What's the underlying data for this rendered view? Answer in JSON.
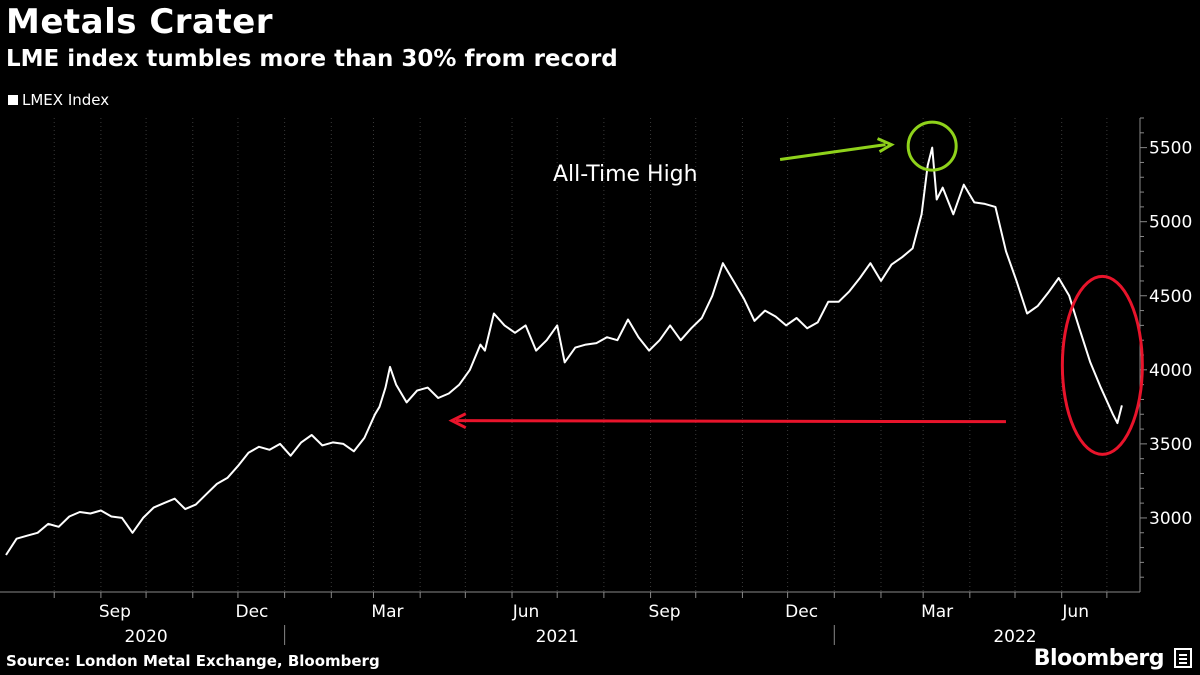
{
  "header": {
    "title": "Metals Crater",
    "subtitle": "LME index tumbles more than 30% from record"
  },
  "legend": {
    "label": "LMEX Index",
    "color": "#ffffff"
  },
  "footer": {
    "source": "Source: London Metal Exchange, Bloomberg",
    "brand": "Bloomberg"
  },
  "colors": {
    "background": "#000000",
    "line": "#ffffff",
    "grid": "#3a3a3a",
    "annotation_green": "#8fd21b",
    "annotation_red": "#e8142b"
  },
  "annotations": {
    "ath_label": "All-Time High"
  },
  "chart_data": {
    "type": "line",
    "series": [
      {
        "name": "LMEX Index",
        "points": [
          [
            "2020-06-30",
            2750
          ],
          [
            "2020-07-07",
            2860
          ],
          [
            "2020-07-14",
            2880
          ],
          [
            "2020-07-21",
            2900
          ],
          [
            "2020-07-28",
            2960
          ],
          [
            "2020-08-04",
            2940
          ],
          [
            "2020-08-11",
            3010
          ],
          [
            "2020-08-18",
            3040
          ],
          [
            "2020-08-25",
            3030
          ],
          [
            "2020-09-01",
            3050
          ],
          [
            "2020-09-08",
            3010
          ],
          [
            "2020-09-15",
            3000
          ],
          [
            "2020-09-22",
            2900
          ],
          [
            "2020-09-29",
            3000
          ],
          [
            "2020-10-06",
            3070
          ],
          [
            "2020-10-13",
            3100
          ],
          [
            "2020-10-20",
            3130
          ],
          [
            "2020-10-27",
            3060
          ],
          [
            "2020-11-03",
            3090
          ],
          [
            "2020-11-10",
            3160
          ],
          [
            "2020-11-17",
            3230
          ],
          [
            "2020-11-24",
            3270
          ],
          [
            "2020-12-01",
            3350
          ],
          [
            "2020-12-08",
            3440
          ],
          [
            "2020-12-15",
            3480
          ],
          [
            "2020-12-22",
            3460
          ],
          [
            "2020-12-29",
            3500
          ],
          [
            "2021-01-05",
            3420
          ],
          [
            "2021-01-12",
            3510
          ],
          [
            "2021-01-19",
            3560
          ],
          [
            "2021-01-26",
            3490
          ],
          [
            "2021-02-02",
            3510
          ],
          [
            "2021-02-09",
            3500
          ],
          [
            "2021-02-16",
            3450
          ],
          [
            "2021-02-23",
            3540
          ],
          [
            "2021-03-02",
            3700
          ],
          [
            "2021-03-05",
            3750
          ],
          [
            "2021-03-09",
            3880
          ],
          [
            "2021-03-12",
            4020
          ],
          [
            "2021-03-16",
            3900
          ],
          [
            "2021-03-23",
            3780
          ],
          [
            "2021-03-30",
            3860
          ],
          [
            "2021-04-06",
            3880
          ],
          [
            "2021-04-13",
            3810
          ],
          [
            "2021-04-20",
            3840
          ],
          [
            "2021-04-27",
            3900
          ],
          [
            "2021-05-04",
            4000
          ],
          [
            "2021-05-11",
            4170
          ],
          [
            "2021-05-14",
            4130
          ],
          [
            "2021-05-20",
            4380
          ],
          [
            "2021-05-27",
            4300
          ],
          [
            "2021-06-03",
            4250
          ],
          [
            "2021-06-10",
            4300
          ],
          [
            "2021-06-17",
            4130
          ],
          [
            "2021-06-24",
            4200
          ],
          [
            "2021-07-01",
            4300
          ],
          [
            "2021-07-06",
            4050
          ],
          [
            "2021-07-13",
            4150
          ],
          [
            "2021-07-20",
            4170
          ],
          [
            "2021-07-27",
            4180
          ],
          [
            "2021-08-03",
            4220
          ],
          [
            "2021-08-10",
            4200
          ],
          [
            "2021-08-17",
            4340
          ],
          [
            "2021-08-24",
            4220
          ],
          [
            "2021-08-31",
            4130
          ],
          [
            "2021-09-07",
            4200
          ],
          [
            "2021-09-14",
            4300
          ],
          [
            "2021-09-21",
            4200
          ],
          [
            "2021-09-28",
            4280
          ],
          [
            "2021-10-05",
            4350
          ],
          [
            "2021-10-12",
            4500
          ],
          [
            "2021-10-19",
            4720
          ],
          [
            "2021-10-26",
            4600
          ],
          [
            "2021-11-02",
            4480
          ],
          [
            "2021-11-09",
            4330
          ],
          [
            "2021-11-16",
            4400
          ],
          [
            "2021-11-23",
            4360
          ],
          [
            "2021-11-30",
            4300
          ],
          [
            "2021-12-07",
            4350
          ],
          [
            "2021-12-14",
            4280
          ],
          [
            "2021-12-21",
            4320
          ],
          [
            "2021-12-28",
            4460
          ],
          [
            "2022-01-04",
            4460
          ],
          [
            "2022-01-11",
            4530
          ],
          [
            "2022-01-18",
            4620
          ],
          [
            "2022-01-25",
            4720
          ],
          [
            "2022-02-01",
            4600
          ],
          [
            "2022-02-08",
            4710
          ],
          [
            "2022-02-15",
            4760
          ],
          [
            "2022-02-22",
            4820
          ],
          [
            "2022-02-28",
            5050
          ],
          [
            "2022-03-04",
            5380
          ],
          [
            "2022-03-07",
            5500
          ],
          [
            "2022-03-10",
            5150
          ],
          [
            "2022-03-14",
            5230
          ],
          [
            "2022-03-21",
            5050
          ],
          [
            "2022-03-28",
            5250
          ],
          [
            "2022-04-04",
            5130
          ],
          [
            "2022-04-11",
            5120
          ],
          [
            "2022-04-18",
            5100
          ],
          [
            "2022-04-25",
            4800
          ],
          [
            "2022-05-02",
            4600
          ],
          [
            "2022-05-09",
            4380
          ],
          [
            "2022-05-16",
            4430
          ],
          [
            "2022-05-23",
            4520
          ],
          [
            "2022-05-30",
            4620
          ],
          [
            "2022-06-06",
            4500
          ],
          [
            "2022-06-13",
            4270
          ],
          [
            "2022-06-20",
            4050
          ],
          [
            "2022-06-27",
            3880
          ],
          [
            "2022-07-05",
            3700
          ],
          [
            "2022-07-08",
            3640
          ],
          [
            "2022-07-11",
            3760
          ]
        ]
      }
    ],
    "x_months": [
      {
        "label": "Sep",
        "date": "2020-09-01"
      },
      {
        "label": "Dec",
        "date": "2020-12-01"
      },
      {
        "label": "Mar",
        "date": "2021-03-01"
      },
      {
        "label": "Jun",
        "date": "2021-06-01"
      },
      {
        "label": "Sep",
        "date": "2021-09-01"
      },
      {
        "label": "Dec",
        "date": "2021-12-01"
      },
      {
        "label": "Mar",
        "date": "2022-03-01"
      },
      {
        "label": "Jun",
        "date": "2022-06-01"
      }
    ],
    "x_years": [
      {
        "label": "2020",
        "date": "2020-10-01"
      },
      {
        "label": "2021",
        "date": "2021-07-01"
      },
      {
        "label": "2022",
        "date": "2022-05-01"
      }
    ],
    "year_dividers": [
      "2021-01-01",
      "2022-01-01"
    ],
    "y_ticks": [
      3000,
      3500,
      4000,
      4500,
      5000,
      5500
    ],
    "ylim": [
      2500,
      5700
    ],
    "xlim": [
      "2020-06-26",
      "2022-07-23"
    ],
    "grid": "vertical-monthly",
    "y_axis_position": "right",
    "legend_position": "top-left",
    "arrow_ath_from": "2021-11-26",
    "arrow_ath_to": "2022-02-08",
    "arrow_ath_values": [
      5420,
      5520
    ],
    "arrow_red_from": "2022-04-25",
    "arrow_red_to": "2021-04-22",
    "arrow_red_value": 3650,
    "ath_circle_center": [
      "2022-03-07",
      5510
    ],
    "red_ellipse_center": [
      "2022-06-28",
      4030
    ]
  }
}
